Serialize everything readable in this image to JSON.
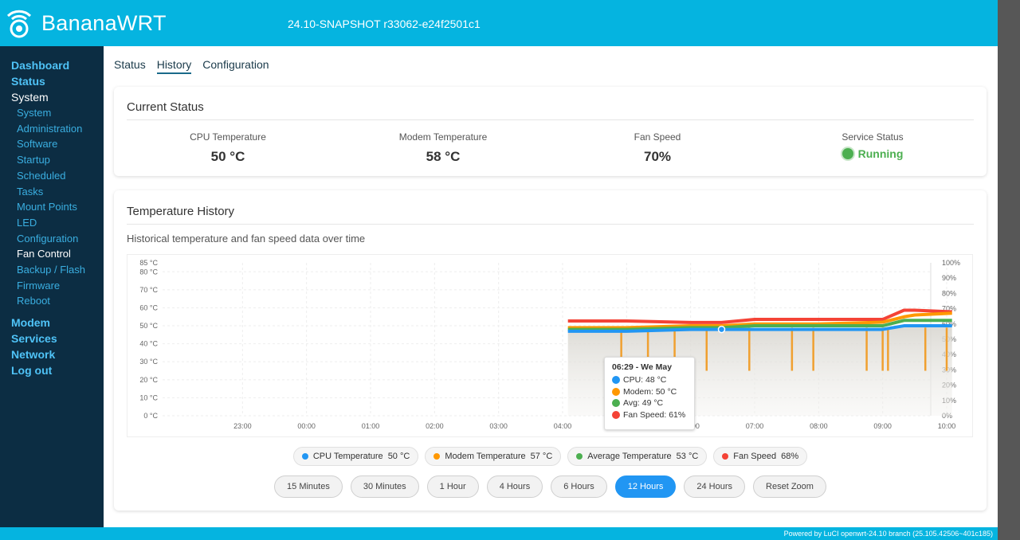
{
  "header": {
    "brand": "BananaWRT",
    "version": "24.10-SNAPSHOT r33062-e24f2501c1"
  },
  "sidebar": {
    "top_items": [
      {
        "label": "Dashboard"
      },
      {
        "label": "Status"
      },
      {
        "label": "System"
      }
    ],
    "system_items": [
      {
        "label": "System"
      },
      {
        "label": "Administration"
      },
      {
        "label": "Software"
      },
      {
        "label": "Startup"
      },
      {
        "label": "Scheduled"
      },
      {
        "label": "Tasks"
      },
      {
        "label": "Mount Points"
      },
      {
        "label": "LED"
      },
      {
        "label": "Configuration"
      },
      {
        "label": "Fan Control"
      },
      {
        "label": "Backup / Flash"
      },
      {
        "label": "Firmware"
      },
      {
        "label": "Reboot"
      }
    ],
    "bottom_items": [
      {
        "label": "Modem"
      },
      {
        "label": "Services"
      },
      {
        "label": "Network"
      },
      {
        "label": "Log out"
      }
    ]
  },
  "tabs": [
    {
      "label": "Status"
    },
    {
      "label": "History"
    },
    {
      "label": "Configuration"
    }
  ],
  "current_status": {
    "title": "Current Status",
    "cpu_label": "CPU Temperature",
    "cpu_value": "50 °C",
    "modem_label": "Modem Temperature",
    "modem_value": "58 °C",
    "fan_label": "Fan Speed",
    "fan_value": "70%",
    "service_label": "Service Status",
    "service_value": "Running"
  },
  "history": {
    "title": "Temperature History",
    "subtitle": "Historical temperature and fan speed data over time",
    "tooltip": {
      "title": "06:29 - We May",
      "cpu": "CPU: 48 °C",
      "modem": "Modem: 50 °C",
      "avg": "Avg: 49 °C",
      "fan": "Fan Speed: 61%"
    },
    "legend": [
      {
        "label": "CPU Temperature",
        "value": "50 °C",
        "color": "#2196f3"
      },
      {
        "label": "Modem Temperature",
        "value": "57 °C",
        "color": "#ff9800"
      },
      {
        "label": "Average Temperature",
        "value": "53 °C",
        "color": "#4caf50"
      },
      {
        "label": "Fan Speed",
        "value": "68%",
        "color": "#f44336"
      }
    ],
    "ranges": [
      {
        "label": "15 Minutes"
      },
      {
        "label": "30 Minutes"
      },
      {
        "label": "1 Hour"
      },
      {
        "label": "4 Hours"
      },
      {
        "label": "6 Hours"
      },
      {
        "label": "12 Hours"
      },
      {
        "label": "24 Hours"
      },
      {
        "label": "Reset Zoom"
      }
    ],
    "active_range": "12 Hours"
  },
  "chart_data": {
    "type": "line",
    "x_ticks": [
      "23:00",
      "00:00",
      "01:00",
      "02:00",
      "03:00",
      "04:00",
      "05:00",
      "06:00",
      "07:00",
      "08:00",
      "09:00",
      "10:00"
    ],
    "y_left_ticks": [
      "85 °C",
      "80 °C",
      "70 °C",
      "60 °C",
      "50 °C",
      "40 °C",
      "30 °C",
      "20 °C",
      "10 °C",
      "0 °C"
    ],
    "y_right_ticks": [
      "100%",
      "90%",
      "80%",
      "70%",
      "60%",
      "50%",
      "40%",
      "30%",
      "20%",
      "10%",
      "0%"
    ],
    "ylim_left": [
      0,
      85
    ],
    "ylim_right": [
      0,
      100
    ],
    "x_range_hours": [
      22.0,
      10.0
    ],
    "series": [
      {
        "name": "CPU Temperature",
        "color": "#2196f3",
        "axis": "left",
        "x": [
          "04:05",
          "05:00",
          "06:00",
          "06:29",
          "07:00",
          "08:00",
          "09:00",
          "09:20",
          "09:30",
          "10:05"
        ],
        "values": [
          47,
          47,
          48,
          48,
          48,
          48,
          48,
          50,
          50,
          50
        ]
      },
      {
        "name": "Modem Temperature",
        "color": "#ff9800",
        "axis": "left",
        "x": [
          "04:05",
          "05:00",
          "06:00",
          "06:29",
          "07:00",
          "08:00",
          "09:00",
          "09:20",
          "09:30",
          "10:05"
        ],
        "values": [
          49,
          49,
          50,
          50,
          51,
          51,
          52,
          55,
          56,
          57
        ]
      },
      {
        "name": "Average Temperature",
        "color": "#4caf50",
        "axis": "left",
        "x": [
          "04:05",
          "05:00",
          "06:00",
          "06:29",
          "07:00",
          "08:00",
          "09:00",
          "09:20",
          "09:30",
          "10:05"
        ],
        "values": [
          48,
          48,
          49,
          49,
          50,
          50,
          50,
          53,
          53,
          53
        ]
      },
      {
        "name": "Fan Speed",
        "color": "#f44336",
        "axis": "right",
        "x": [
          "04:05",
          "05:00",
          "06:00",
          "06:29",
          "07:00",
          "08:00",
          "09:00",
          "09:20",
          "09:30",
          "10:05"
        ],
        "values": [
          62,
          62,
          61,
          61,
          63,
          63,
          63,
          69,
          69,
          68
        ]
      }
    ],
    "modem_dips": [
      "04:55",
      "05:20",
      "05:45",
      "06:15",
      "06:55",
      "07:35",
      "07:55",
      "08:45",
      "09:00",
      "09:05",
      "09:40",
      "10:00"
    ]
  }
}
